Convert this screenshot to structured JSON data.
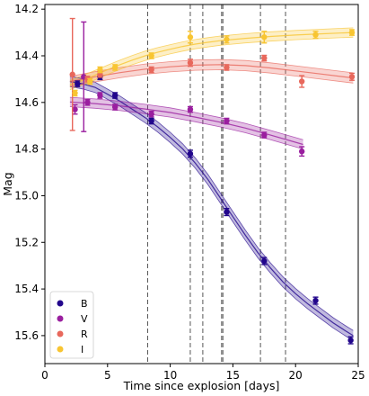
{
  "chart_data": {
    "type": "scatter",
    "xlabel": "Time since explosion [days]",
    "ylabel": "Mag",
    "xlim": [
      0,
      25
    ],
    "ylim": [
      15.72,
      14.18
    ],
    "y_inverted": true,
    "grid": false,
    "legend_position": "lower-left",
    "xticks": [
      0,
      5,
      10,
      15,
      20,
      25
    ],
    "yticks": [
      14.2,
      14.4,
      14.6,
      14.8,
      15.0,
      15.2,
      15.4,
      15.6
    ],
    "vlines": [
      8.2,
      11.6,
      12.6,
      14.1,
      14.2,
      17.2,
      19.2
    ],
    "series": [
      {
        "name": "B",
        "color": "#22068c",
        "points": [
          {
            "x": 2.6,
            "y": 14.52,
            "err": 0.012
          },
          {
            "x": 4.4,
            "y": 14.49,
            "err": 0.012
          },
          {
            "x": 5.6,
            "y": 14.57,
            "err": 0.012
          },
          {
            "x": 8.5,
            "y": 14.68,
            "err": 0.012
          },
          {
            "x": 11.6,
            "y": 14.82,
            "err": 0.015
          },
          {
            "x": 14.5,
            "y": 15.07,
            "err": 0.015
          },
          {
            "x": 17.5,
            "y": 15.28,
            "err": 0.015
          },
          {
            "x": 21.6,
            "y": 15.45,
            "err": 0.015
          },
          {
            "x": 24.4,
            "y": 15.62,
            "err": 0.015
          }
        ],
        "fit": [
          {
            "x": 2.0,
            "y": 14.51
          },
          {
            "x": 3.0,
            "y": 14.52
          },
          {
            "x": 4.0,
            "y": 14.535
          },
          {
            "x": 5.0,
            "y": 14.565
          },
          {
            "x": 6.0,
            "y": 14.595
          },
          {
            "x": 7.0,
            "y": 14.63
          },
          {
            "x": 8.0,
            "y": 14.665
          },
          {
            "x": 9.0,
            "y": 14.705
          },
          {
            "x": 10.0,
            "y": 14.75
          },
          {
            "x": 11.0,
            "y": 14.8
          },
          {
            "x": 12.0,
            "y": 14.86
          },
          {
            "x": 13.0,
            "y": 14.93
          },
          {
            "x": 14.0,
            "y": 15.01
          },
          {
            "x": 15.0,
            "y": 15.09
          },
          {
            "x": 16.0,
            "y": 15.17
          },
          {
            "x": 17.0,
            "y": 15.245
          },
          {
            "x": 18.0,
            "y": 15.31
          },
          {
            "x": 19.0,
            "y": 15.37
          },
          {
            "x": 20.0,
            "y": 15.42
          },
          {
            "x": 21.0,
            "y": 15.465
          },
          {
            "x": 22.0,
            "y": 15.505
          },
          {
            "x": 23.0,
            "y": 15.545
          },
          {
            "x": 24.0,
            "y": 15.58
          },
          {
            "x": 24.6,
            "y": 15.6
          }
        ],
        "band": 0.022
      },
      {
        "name": "V",
        "color": "#9a1f9f",
        "points": [
          {
            "x": 2.4,
            "y": 14.63,
            "err": 0.02
          },
          {
            "x": 3.1,
            "y": 14.49,
            "err": 0.235
          },
          {
            "x": 3.4,
            "y": 14.6,
            "err": 0.012
          },
          {
            "x": 4.4,
            "y": 14.57,
            "err": 0.012
          },
          {
            "x": 5.6,
            "y": 14.62,
            "err": 0.012
          },
          {
            "x": 8.5,
            "y": 14.65,
            "err": 0.012
          },
          {
            "x": 11.6,
            "y": 14.63,
            "err": 0.012
          },
          {
            "x": 14.5,
            "y": 14.68,
            "err": 0.012
          },
          {
            "x": 17.5,
            "y": 14.74,
            "err": 0.012
          },
          {
            "x": 20.5,
            "y": 14.81,
            "err": 0.02
          }
        ],
        "fit": [
          {
            "x": 2.0,
            "y": 14.598
          },
          {
            "x": 4.0,
            "y": 14.605
          },
          {
            "x": 6.0,
            "y": 14.615
          },
          {
            "x": 8.0,
            "y": 14.628
          },
          {
            "x": 10.0,
            "y": 14.643
          },
          {
            "x": 12.0,
            "y": 14.663
          },
          {
            "x": 14.0,
            "y": 14.685
          },
          {
            "x": 16.0,
            "y": 14.71
          },
          {
            "x": 18.0,
            "y": 14.74
          },
          {
            "x": 20.6,
            "y": 14.78
          }
        ],
        "band": 0.02
      },
      {
        "name": "R",
        "color": "#e8685c",
        "points": [
          {
            "x": 2.2,
            "y": 14.48,
            "err": 0.24
          },
          {
            "x": 3.4,
            "y": 14.5,
            "err": 0.012
          },
          {
            "x": 4.4,
            "y": 14.48,
            "err": 0.012
          },
          {
            "x": 8.5,
            "y": 14.46,
            "err": 0.012
          },
          {
            "x": 11.6,
            "y": 14.43,
            "err": 0.015
          },
          {
            "x": 14.5,
            "y": 14.45,
            "err": 0.012
          },
          {
            "x": 17.5,
            "y": 14.41,
            "err": 0.012
          },
          {
            "x": 20.5,
            "y": 14.51,
            "err": 0.025
          },
          {
            "x": 24.5,
            "y": 14.49,
            "err": 0.015
          }
        ],
        "fit": [
          {
            "x": 2.0,
            "y": 14.51
          },
          {
            "x": 4.0,
            "y": 14.49
          },
          {
            "x": 6.0,
            "y": 14.472
          },
          {
            "x": 8.0,
            "y": 14.457
          },
          {
            "x": 10.0,
            "y": 14.447
          },
          {
            "x": 12.0,
            "y": 14.44
          },
          {
            "x": 14.0,
            "y": 14.438
          },
          {
            "x": 16.0,
            "y": 14.442
          },
          {
            "x": 18.0,
            "y": 14.452
          },
          {
            "x": 20.0,
            "y": 14.465
          },
          {
            "x": 22.0,
            "y": 14.478
          },
          {
            "x": 24.6,
            "y": 14.495
          }
        ],
        "band": 0.022
      },
      {
        "name": "I",
        "color": "#f8c532",
        "points": [
          {
            "x": 2.4,
            "y": 14.56,
            "err": 0.012
          },
          {
            "x": 3.6,
            "y": 14.51,
            "err": 0.012
          },
          {
            "x": 4.4,
            "y": 14.46,
            "err": 0.012
          },
          {
            "x": 5.6,
            "y": 14.45,
            "err": 0.012
          },
          {
            "x": 8.5,
            "y": 14.4,
            "err": 0.012
          },
          {
            "x": 11.6,
            "y": 14.32,
            "err": 0.025
          },
          {
            "x": 14.5,
            "y": 14.33,
            "err": 0.015
          },
          {
            "x": 17.5,
            "y": 14.32,
            "err": 0.025
          },
          {
            "x": 21.6,
            "y": 14.31,
            "err": 0.015
          },
          {
            "x": 24.5,
            "y": 14.3,
            "err": 0.012
          }
        ],
        "fit": [
          {
            "x": 2.0,
            "y": 14.525
          },
          {
            "x": 3.0,
            "y": 14.505
          },
          {
            "x": 4.0,
            "y": 14.483
          },
          {
            "x": 5.0,
            "y": 14.46
          },
          {
            "x": 6.0,
            "y": 14.438
          },
          {
            "x": 7.0,
            "y": 14.418
          },
          {
            "x": 8.0,
            "y": 14.4
          },
          {
            "x": 9.0,
            "y": 14.385
          },
          {
            "x": 10.0,
            "y": 14.372
          },
          {
            "x": 11.0,
            "y": 14.36
          },
          {
            "x": 12.0,
            "y": 14.35
          },
          {
            "x": 13.0,
            "y": 14.342
          },
          {
            "x": 14.0,
            "y": 14.335
          },
          {
            "x": 16.0,
            "y": 14.325
          },
          {
            "x": 18.0,
            "y": 14.317
          },
          {
            "x": 20.0,
            "y": 14.311
          },
          {
            "x": 22.0,
            "y": 14.306
          },
          {
            "x": 24.6,
            "y": 14.3
          }
        ],
        "band": 0.02
      }
    ]
  }
}
